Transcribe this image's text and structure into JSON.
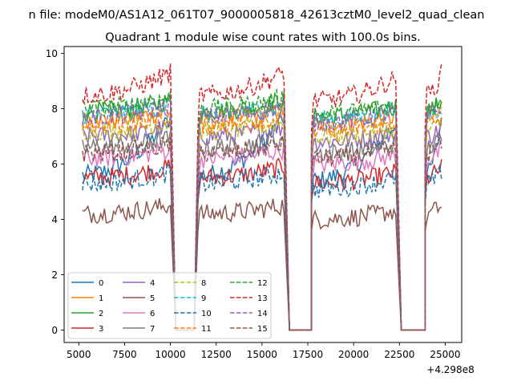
{
  "figure": {
    "suptitle": "n file: modeM0/AS1A12_061T07_9000005818_42613cztM0_level2_quad_clean",
    "title": "Quadrant 1 module wise count rates with 100.0s bins.",
    "offset_label": "+4.298e8"
  },
  "chart_data": {
    "type": "line",
    "title": "Quadrant 1 module wise count rates with 100.0s bins.",
    "xlabel": "",
    "ylabel": "",
    "x_offset": 429800000,
    "xlim": [
      4200,
      25900
    ],
    "ylim": [
      -0.45,
      10.25
    ],
    "x_ticks": [
      5000,
      7500,
      10000,
      12500,
      15000,
      17500,
      20000,
      22500,
      25000
    ],
    "x_tick_labels": [
      "5000",
      "7500",
      "10000",
      "12500",
      "15000",
      "17500",
      "20000",
      "22500",
      "25000"
    ],
    "y_ticks": [
      0,
      2,
      4,
      6,
      8,
      10
    ],
    "y_tick_labels": [
      "0",
      "2",
      "4",
      "6",
      "8",
      "10"
    ],
    "grid": false,
    "legend": {
      "placement": "lower-left",
      "columns": 4
    },
    "segments": [
      {
        "x_start": 5200,
        "x_end": 9950,
        "drop_to_zero_at": 10300
      },
      {
        "x_start": 11500,
        "x_end": 16200,
        "drop_to_zero_at": 16500
      },
      {
        "x_start": 17700,
        "x_end": 22300,
        "drop_to_zero_at": 22600
      },
      {
        "x_start": 23900,
        "x_end": 24800,
        "drop_to_zero_at": null
      }
    ],
    "zero_intervals": [
      [
        10300,
        11300
      ],
      [
        16500,
        17700
      ],
      [
        22600,
        23900
      ]
    ],
    "series": [
      {
        "name": "0",
        "color": "#1f77b4",
        "dashed": false,
        "level": 5.6,
        "peak": 8.2
      },
      {
        "name": "1",
        "color": "#ff7f0e",
        "dashed": false,
        "level": 7.6,
        "peak": 8.0
      },
      {
        "name": "2",
        "color": "#2ca02c",
        "dashed": false,
        "level": 7.9,
        "peak": 8.4
      },
      {
        "name": "3",
        "color": "#d62728",
        "dashed": false,
        "level": 5.5,
        "peak": 6.0
      },
      {
        "name": "4",
        "color": "#9467bd",
        "dashed": false,
        "level": 7.0,
        "peak": 7.4
      },
      {
        "name": "5",
        "color": "#8c564b",
        "dashed": false,
        "level": 4.2,
        "peak": 4.6
      },
      {
        "name": "6",
        "color": "#e377c2",
        "dashed": false,
        "level": 6.2,
        "peak": 6.6
      },
      {
        "name": "7",
        "color": "#7f7f7f",
        "dashed": false,
        "level": 6.6,
        "peak": 7.0
      },
      {
        "name": "8",
        "color": "#bcbd22",
        "dashed": true,
        "level": 7.2,
        "peak": 7.6
      },
      {
        "name": "9",
        "color": "#17becf",
        "dashed": true,
        "level": 7.8,
        "peak": 8.2
      },
      {
        "name": "10",
        "color": "#1f77b4",
        "dashed": true,
        "level": 5.3,
        "peak": 5.8
      },
      {
        "name": "11",
        "color": "#ff7f0e",
        "dashed": true,
        "level": 7.4,
        "peak": 7.8
      },
      {
        "name": "12",
        "color": "#2ca02c",
        "dashed": true,
        "level": 8.0,
        "peak": 8.5
      },
      {
        "name": "13",
        "color": "#d62728",
        "dashed": true,
        "level": 8.5,
        "peak": 9.5
      },
      {
        "name": "14",
        "color": "#9467bd",
        "dashed": true,
        "level": 7.7,
        "peak": 8.2
      },
      {
        "name": "15",
        "color": "#8c564b",
        "dashed": true,
        "level": 6.4,
        "peak": 6.8
      }
    ]
  }
}
